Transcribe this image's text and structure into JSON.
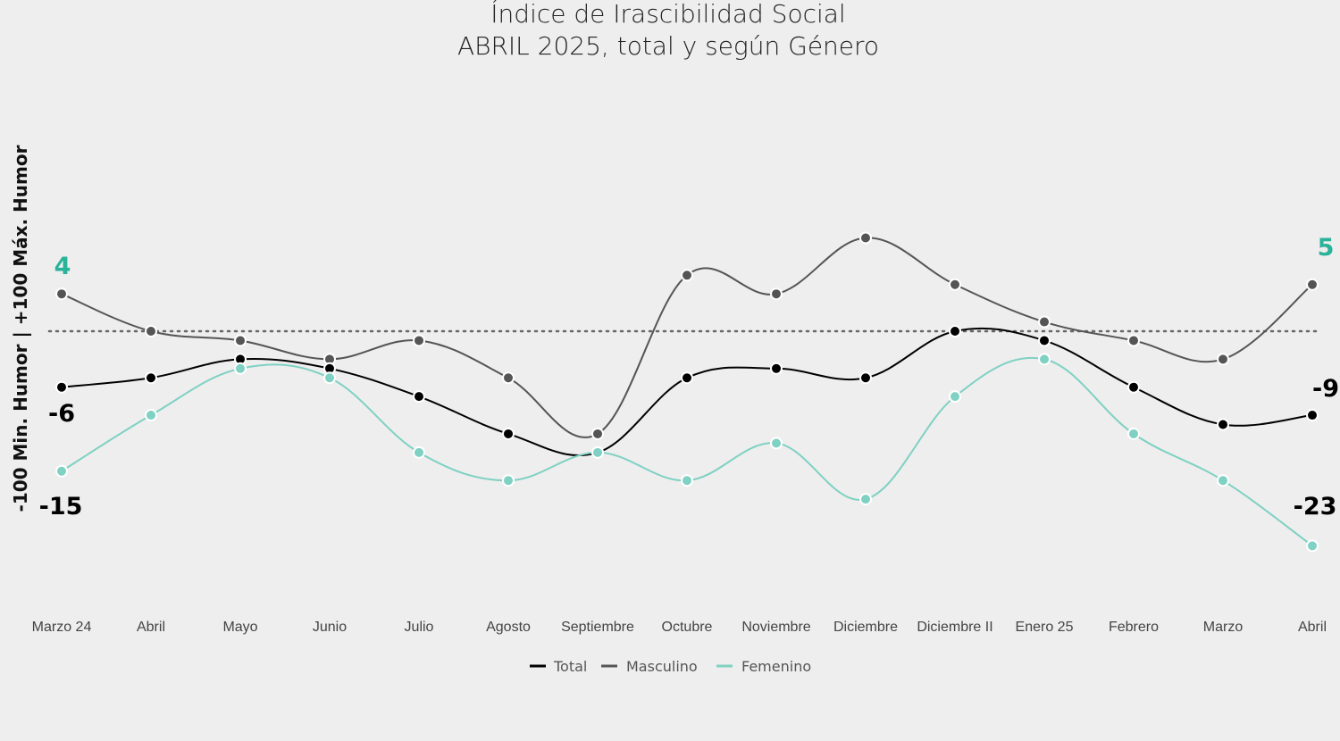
{
  "chart_data": {
    "type": "line",
    "title": "Índice de Irascibilidad Social",
    "subtitle": "ABRIL 2025, total y según Género",
    "xlabel": "",
    "ylabel": "-100 Min. Humor | +100 Máx. Humor",
    "categories": [
      "Marzo 24",
      "Abril",
      "Mayo",
      "Junio",
      "Julio",
      "Agosto",
      "Septiembre",
      "Octubre",
      "Noviembre",
      "Diciembre",
      "Diciembre II",
      "Enero 25",
      "Febrero",
      "Marzo",
      "Abril"
    ],
    "ylim": [
      -40,
      30
    ],
    "reference_line": 0,
    "grid": false,
    "legend_position": "bottom",
    "series": [
      {
        "name": "Total",
        "color": "#000000",
        "values": [
          -6,
          -5,
          -3,
          -4,
          -7,
          -11,
          -13,
          -5,
          -4,
          -5,
          0,
          -1,
          -6,
          -10,
          -9
        ]
      },
      {
        "name": "Masculino",
        "color": "#555555",
        "values": [
          4,
          0,
          -1,
          -3,
          -1,
          -5,
          -11,
          6,
          4,
          10,
          5,
          1,
          -1,
          -3,
          5
        ]
      },
      {
        "name": "Femenino",
        "color": "#7fd1c3",
        "values": [
          -15,
          -9,
          -4,
          -5,
          -13,
          -16,
          -13,
          -16,
          -12,
          -18,
          -7,
          -3,
          -11,
          -16,
          -23
        ]
      }
    ],
    "data_labels": {
      "first_masculino": "4",
      "first_total": "-6",
      "first_femenino": "-15",
      "last_masculino": "5",
      "last_total": "-9",
      "last_femenino": "-23"
    },
    "label_colors": {
      "masculino": "#2bb39a",
      "total": "#000000",
      "femenino": "#000000"
    }
  }
}
